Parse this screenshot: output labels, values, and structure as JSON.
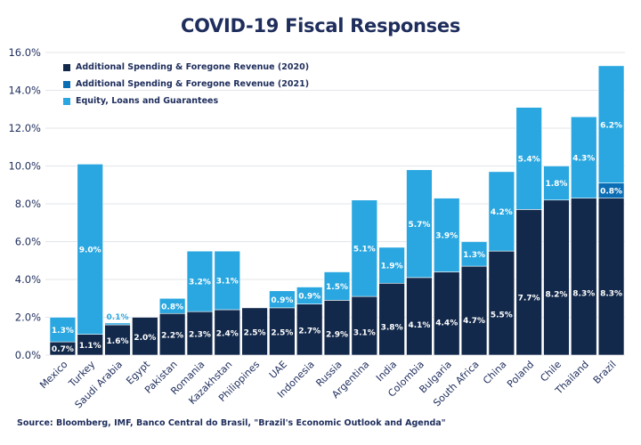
{
  "chart_data": {
    "type": "bar",
    "stacked": true,
    "title": "COVID-19 Fiscal Responses",
    "xlabel": "",
    "ylabel": "",
    "ylim": [
      0,
      16
    ],
    "yticks": [
      0,
      2,
      4,
      6,
      8,
      10,
      12,
      14,
      16
    ],
    "ytick_labels": [
      "0.0%",
      "2.0%",
      "4.0%",
      "6.0%",
      "8.0%",
      "10.0%",
      "12.0%",
      "14.0%",
      "16.0%"
    ],
    "grid": true,
    "legend_position": "top-left",
    "categories": [
      "Mexico",
      "Turkey",
      "Saudi Arabia",
      "Egypt",
      "Pakistan",
      "Romania",
      "Kazakhstan",
      "Philippines",
      "UAE",
      "Indonesia",
      "Russia",
      "Argentina",
      "India",
      "Colombia",
      "Bulgaria",
      "South Africa",
      "China",
      "Poland",
      "Chile",
      "Thailand",
      "Brazil"
    ],
    "series": [
      {
        "name": "Additional Spending & Foregone Revenue (2020)",
        "color": "#13294b",
        "values": [
          0.7,
          1.1,
          1.6,
          2.0,
          2.2,
          2.3,
          2.4,
          2.5,
          2.5,
          2.7,
          2.9,
          3.1,
          3.8,
          4.1,
          4.4,
          4.7,
          5.5,
          7.7,
          8.2,
          8.3,
          8.3
        ]
      },
      {
        "name": "Additional Spending & Foregone Revenue (2021)",
        "color": "#0b6db3",
        "values": [
          0,
          0,
          0,
          0,
          0,
          0,
          0,
          0,
          0,
          0,
          0,
          0,
          0,
          0,
          0,
          0,
          0,
          0,
          0,
          0,
          0.8
        ]
      },
      {
        "name": "Equity, Loans and Guarantees",
        "color": "#2aa7e0",
        "values": [
          1.3,
          9.0,
          0.1,
          0,
          0.8,
          3.2,
          3.1,
          0,
          0.9,
          0.9,
          1.5,
          5.1,
          1.9,
          5.7,
          3.9,
          1.3,
          4.2,
          5.4,
          1.8,
          4.3,
          6.2
        ]
      }
    ],
    "data_labels": true,
    "label_format": "{v}%"
  },
  "source": "Source: Bloomberg, IMF, Banco Central do Brasil, \"Brazil's Economic Outlook and Agenda\""
}
